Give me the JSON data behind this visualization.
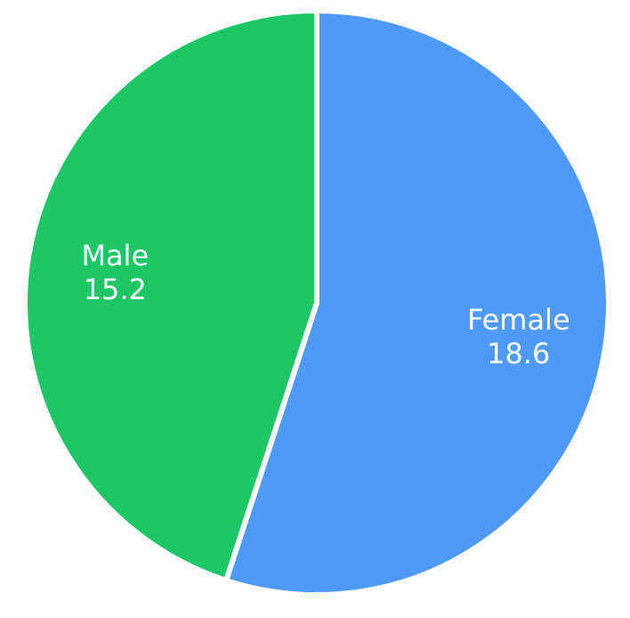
{
  "chart_data": {
    "type": "pie",
    "categories": [
      "Female",
      "Male"
    ],
    "values": [
      18.6,
      15.2
    ],
    "colors": [
      "#4f9af8",
      "#1ec766"
    ],
    "data_labels": true
  }
}
